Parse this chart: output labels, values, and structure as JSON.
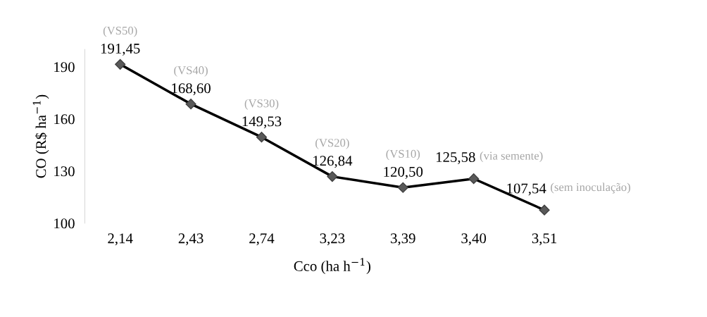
{
  "chart_data": {
    "type": "line",
    "xlabel": "Cco (ha h$^{−1}$)",
    "ylabel": "CO (R$ ha$^{−1}$)",
    "categories": [
      "2,14",
      "2,43",
      "2,74",
      "3,23",
      "3,39",
      "3,40",
      "3,51"
    ],
    "series": [
      {
        "color": "#000000",
        "values": [
          191.45,
          168.6,
          149.53,
          126.84,
          120.5,
          125.58,
          107.54
        ],
        "value_labels": [
          "191,45",
          "168,60",
          "149,53",
          "126,84",
          "120,50",
          "125,58",
          "107,54"
        ]
      }
    ],
    "marker": "diamond",
    "ylim": [
      100,
      200
    ],
    "yticks": [
      100,
      130,
      160,
      190
    ],
    "grid": false,
    "annotations": [
      {
        "text": "(VS50)",
        "x": "2,14",
        "y": 191.45
      },
      {
        "text": "(VS40)",
        "x": "2,43",
        "y": 168.6
      },
      {
        "text": "(VS30)",
        "x": "2,74",
        "y": 149.53
      },
      {
        "text": "(VS20)",
        "x": "3,23",
        "y": 126.84
      },
      {
        "text": "(VS10)",
        "x": "3,39",
        "y": 120.5
      },
      {
        "text": "(via semente)",
        "x": "3,40",
        "y": 125.58
      },
      {
        "text": "(sem inoculação)",
        "x": "3,51",
        "y": 107.54
      }
    ]
  }
}
